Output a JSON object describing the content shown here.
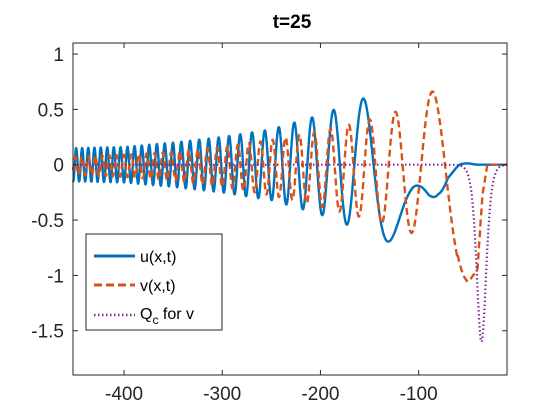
{
  "chart_data": {
    "type": "line",
    "title": "t=25",
    "xlabel": "",
    "ylabel": "",
    "xlim": [
      -452,
      -10
    ],
    "ylim": [
      -1.9,
      1.1
    ],
    "xticks": [
      -400,
      -300,
      -200,
      -100
    ],
    "xtick_labels": [
      "-400",
      "-300",
      "-200",
      "-100"
    ],
    "yticks": [
      1,
      0.5,
      0,
      -0.5,
      -1,
      -1.5
    ],
    "ytick_labels": [
      "1",
      "0.5",
      "0",
      "-0.5",
      "-1",
      "-1.5"
    ],
    "grid": false,
    "legend_position": "bottom-left",
    "series": [
      {
        "name": "u(x,t)",
        "style": "solid",
        "color": "#0072BD",
        "kind": "oscillatory",
        "envelope_x": [
          -452,
          -400,
          -350,
          -300,
          -250,
          -200,
          -150,
          -120,
          -110,
          -100,
          -90,
          -80,
          -70,
          -55,
          -40,
          -10
        ],
        "envelope": [
          0.15,
          0.16,
          0.2,
          0.25,
          0.32,
          0.45,
          0.62,
          0.74,
          0.77,
          0.75,
          0.6,
          0.32,
          0.12,
          0.02,
          0.0,
          0.0
        ],
        "offset": 0.0
      },
      {
        "name": "v(x,t)",
        "style": "dashed",
        "color": "#D95319",
        "kind": "oscillatory",
        "envelope_x": [
          -452,
          -400,
          -350,
          -300,
          -250,
          -200,
          -150,
          -120,
          -100,
          -80,
          -60,
          -50,
          -40,
          -35,
          -30,
          -10
        ],
        "envelope": [
          0.08,
          0.1,
          0.13,
          0.18,
          0.25,
          0.34,
          0.45,
          0.53,
          0.6,
          0.75,
          0.95,
          1.05,
          1.0,
          0.3,
          0.0,
          0.0
        ],
        "offset": -0.28
      },
      {
        "name": "Q_c for v",
        "legend_main": "Q",
        "legend_sub": "c",
        "legend_rest": " for v",
        "style": "dotted",
        "color": "#7E2F8E",
        "kind": "pulse",
        "center": -36,
        "amplitude": -1.6,
        "width": 6.5
      }
    ]
  }
}
